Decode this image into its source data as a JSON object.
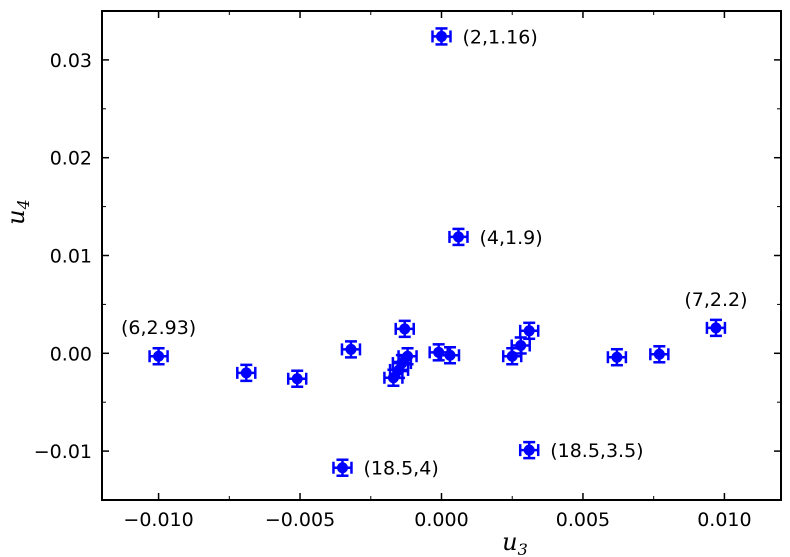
{
  "chart_data": {
    "type": "scatter",
    "xlabel": "u",
    "xlabel_sub": "3",
    "ylabel": "u",
    "ylabel_sub": "4",
    "xlim": [
      -0.012,
      0.012
    ],
    "ylim": [
      -0.015,
      0.035
    ],
    "xticks": [
      -0.01,
      -0.005,
      0.0,
      0.005,
      0.01
    ],
    "xtick_labels": [
      "−0.010",
      "−0.005",
      "0.000",
      "0.005",
      "0.010"
    ],
    "yticks": [
      -0.01,
      0.0,
      0.01,
      0.02,
      0.03
    ],
    "ytick_labels": [
      "−0.01",
      "0.00",
      "0.01",
      "0.02",
      "0.03"
    ],
    "grid": false,
    "marker_color": "#0000ff",
    "series": [
      {
        "points": [
          {
            "x": -0.01,
            "y": -0.0003
          },
          {
            "x": -0.0069,
            "y": -0.002
          },
          {
            "x": -0.0051,
            "y": -0.0026
          },
          {
            "x": -0.0035,
            "y": -0.0117
          },
          {
            "x": -0.0032,
            "y": 0.0004
          },
          {
            "x": -0.0017,
            "y": -0.0025
          },
          {
            "x": -0.0015,
            "y": -0.0017
          },
          {
            "x": -0.0014,
            "y": -0.001
          },
          {
            "x": -0.0013,
            "y": 0.0025
          },
          {
            "x": -0.0012,
            "y": -0.0003
          },
          {
            "x": -0.0001,
            "y": 0.0001
          },
          {
            "x": 0.0,
            "y": 0.0324
          },
          {
            "x": 0.0003,
            "y": -0.0002
          },
          {
            "x": 0.0006,
            "y": 0.0119
          },
          {
            "x": 0.0025,
            "y": -0.0003
          },
          {
            "x": 0.0028,
            "y": 0.0008
          },
          {
            "x": 0.0031,
            "y": -0.0099
          },
          {
            "x": 0.0031,
            "y": 0.0023
          },
          {
            "x": 0.0062,
            "y": -0.0004
          },
          {
            "x": 0.0077,
            "y": -0.0001
          },
          {
            "x": 0.0097,
            "y": 0.0026
          }
        ]
      }
    ],
    "annotations": [
      {
        "text": "(2,1.16)",
        "x": 0.0,
        "y": 0.0324,
        "position": "right"
      },
      {
        "text": "(4,1.9)",
        "x": 0.0006,
        "y": 0.0119,
        "position": "right"
      },
      {
        "text": "(6,2.93)",
        "x": -0.01,
        "y": -0.0003,
        "position": "above"
      },
      {
        "text": "(7,2.2)",
        "x": 0.0097,
        "y": 0.0026,
        "position": "above"
      },
      {
        "text": "(18.5,4)",
        "x": -0.0035,
        "y": -0.0117,
        "position": "right"
      },
      {
        "text": "(18.5,3.5)",
        "x": 0.0031,
        "y": -0.0099,
        "position": "right"
      }
    ]
  }
}
